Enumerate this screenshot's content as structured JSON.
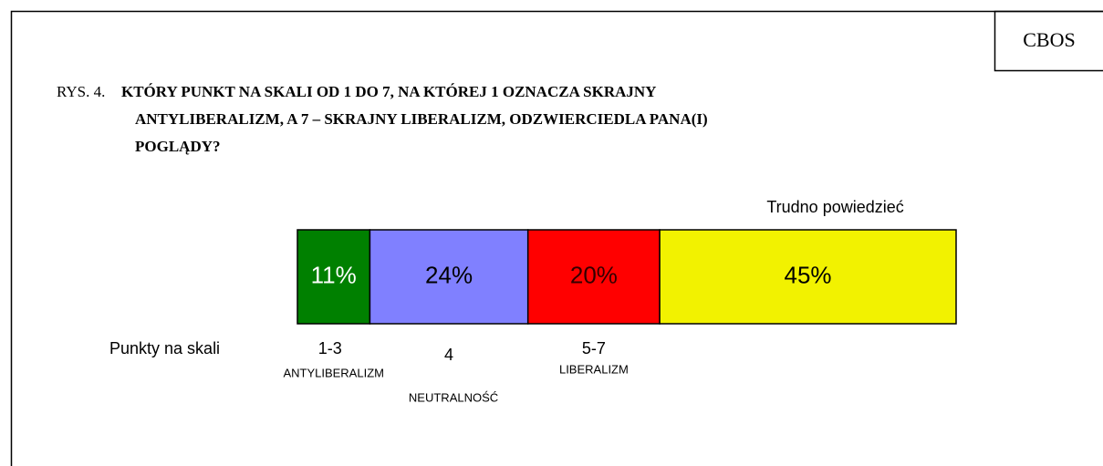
{
  "chart_data": {
    "type": "stacked_bar",
    "brand": "CBOS",
    "title_prefix": "RYS. 4.",
    "title_lines": [
      "KTÓRY PUNKT NA SKALI OD 1 DO 7, NA KTÓREJ 1 OZNACZA SKRAJNY",
      "ANTYLIBERALIZM, A 7 – SKRAJNY LIBERALIZM, ODZWIERCIEDLA PANA(I)",
      "POGLĄDY?"
    ],
    "axis_label": "Punkty na skali",
    "xlim": [
      0,
      100
    ],
    "series": [
      {
        "name": "1-3",
        "sublabel": "ANTYLIBERALIZM",
        "color": "#008000",
        "text_color": "#ffffff",
        "values": [
          11
        ],
        "value_labels": [
          "11%"
        ]
      },
      {
        "name": "4",
        "sublabel": "NEUTRALNOŚĆ",
        "color": "#8080ff",
        "text_color": "#000000",
        "values": [
          24
        ],
        "value_labels": [
          "24%"
        ]
      },
      {
        "name": "5-7",
        "sublabel": "LIBERALIZM",
        "color": "#ff0000",
        "text_color": "#330000",
        "values": [
          20
        ],
        "value_labels": [
          "20%"
        ]
      },
      {
        "name": "Trudno powiedzieć",
        "color": "#f2f200",
        "text_color": "#000000",
        "values": [
          45
        ],
        "value_labels": [
          "45%"
        ]
      }
    ]
  }
}
